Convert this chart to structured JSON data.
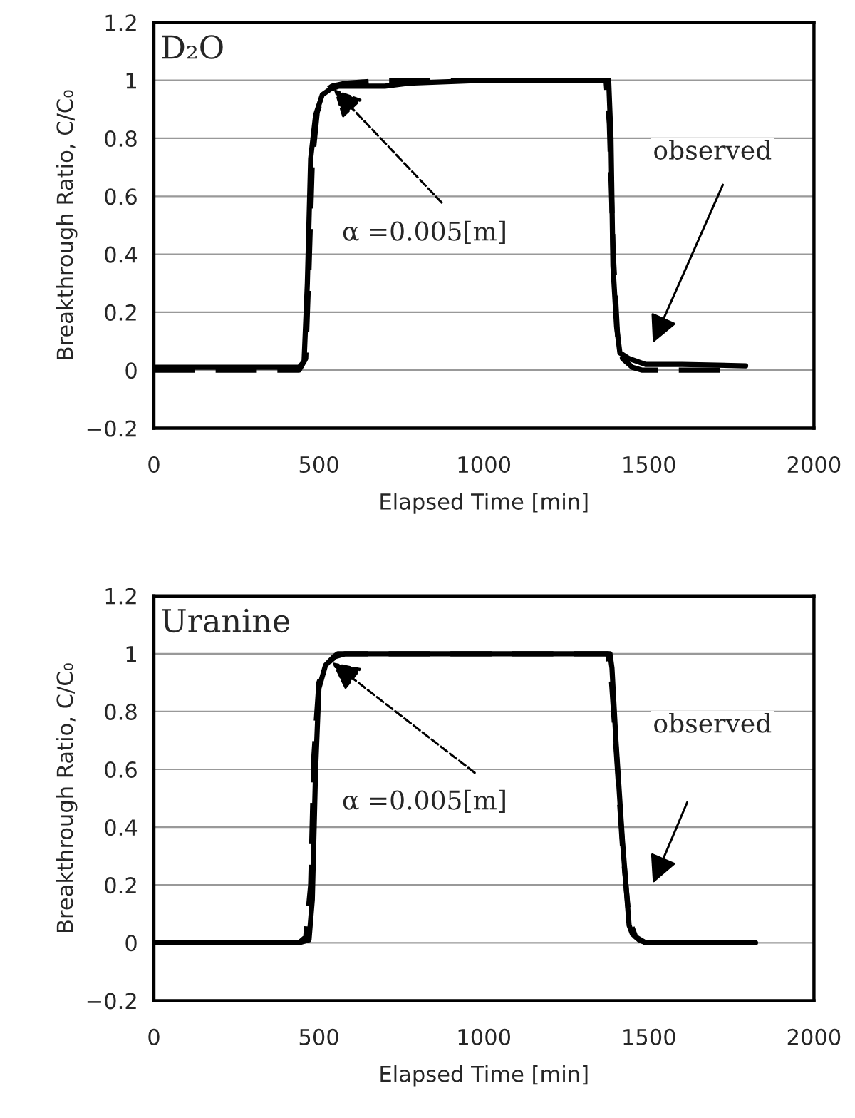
{
  "chart_data": [
    {
      "type": "line",
      "title": "D₂O",
      "xlabel": "Elapsed Time [min]",
      "ylabel": "Breakthrough Ratio, C/C₀",
      "xlim": [
        0,
        2000
      ],
      "xticks": [
        0,
        500,
        1000,
        1500,
        2000
      ],
      "ylim": [
        -0.2,
        1.2
      ],
      "yticks": [
        {
          "value": -0.2,
          "label": "−0.2"
        },
        0,
        0.2,
        0.4,
        0.6,
        0.8,
        1,
        1.2
      ],
      "grid": "y",
      "legend": false,
      "series": [
        {
          "color": "#000000",
          "line_style": "solid",
          "x": [
            0,
            440,
            455,
            465,
            475,
            490,
            510,
            535,
            560,
            700,
            773,
            1000,
            1200,
            1378,
            1385,
            1391,
            1402,
            1412,
            1440,
            1490,
            1600,
            1793
          ],
          "values": [
            0.01,
            0.01,
            0.03,
            0.3,
            0.73,
            0.88,
            0.95,
            0.97,
            0.98,
            0.98,
            0.99,
            1.0,
            1.0,
            1.0,
            0.8,
            0.36,
            0.15,
            0.06,
            0.04,
            0.02,
            0.02,
            0.015
          ]
        },
        {
          "color": "#000000",
          "line_style": "dashed",
          "x": [
            0,
            440,
            460,
            470,
            480,
            495,
            515,
            540,
            580,
            700,
            1000,
            1200,
            1370,
            1380,
            1392,
            1405,
            1420,
            1450,
            1480,
            1600,
            1766
          ],
          "values": [
            0.0,
            0.0,
            0.04,
            0.35,
            0.72,
            0.89,
            0.96,
            0.98,
            0.99,
            1.0,
            1.0,
            1.0,
            1.0,
            0.85,
            0.4,
            0.12,
            0.04,
            0.01,
            0.0,
            0.0,
            0.0
          ]
        }
      ],
      "annotations": [
        {
          "text": "α =0.005[m]",
          "x": 545,
          "y": 0.97
        },
        "observed"
      ]
    },
    {
      "type": "line",
      "title": "Uranine",
      "xlabel": "Elapsed Time [min]",
      "ylabel": "Breakthrough Ratio, C/C₀",
      "xlim": [
        0,
        2000
      ],
      "xticks": [
        0,
        500,
        1000,
        1500,
        2000
      ],
      "ylim": [
        -0.2,
        1.2
      ],
      "yticks": [
        {
          "value": -0.2,
          "label": "−0.2"
        },
        0,
        0.2,
        0.4,
        0.6,
        0.8,
        1,
        1.2
      ],
      "grid": "y",
      "legend": false,
      "series": [
        {
          "color": "#000000",
          "line_style": "solid",
          "x": [
            0,
            440,
            470,
            480,
            490,
            500,
            520,
            545,
            557,
            700,
            1000,
            1200,
            1382,
            1388,
            1400,
            1420,
            1440,
            1450,
            1470,
            1490,
            1600,
            1823
          ],
          "values": [
            0.0,
            0.0,
            0.01,
            0.15,
            0.6,
            0.88,
            0.96,
            0.99,
            1.0,
            1.0,
            1.0,
            1.0,
            1.0,
            0.95,
            0.7,
            0.35,
            0.06,
            0.03,
            0.01,
            0.0,
            0.0,
            0.0
          ]
        },
        {
          "color": "#000000",
          "line_style": "dashed",
          "x": [
            0,
            440,
            460,
            475,
            485,
            500,
            520,
            550,
            580,
            700,
            1000,
            1200,
            1375,
            1385,
            1400,
            1420,
            1440,
            1460,
            1490,
            1600,
            1780
          ],
          "values": [
            0.0,
            0.0,
            0.02,
            0.2,
            0.65,
            0.9,
            0.96,
            0.99,
            1.0,
            1.0,
            1.0,
            1.0,
            1.0,
            0.93,
            0.68,
            0.33,
            0.08,
            0.02,
            0.0,
            0.0,
            0.0
          ]
        }
      ],
      "annotations": [
        {
          "text": "α =0.005[m]",
          "x": 540,
          "y": 0.97
        },
        "observed"
      ]
    }
  ]
}
